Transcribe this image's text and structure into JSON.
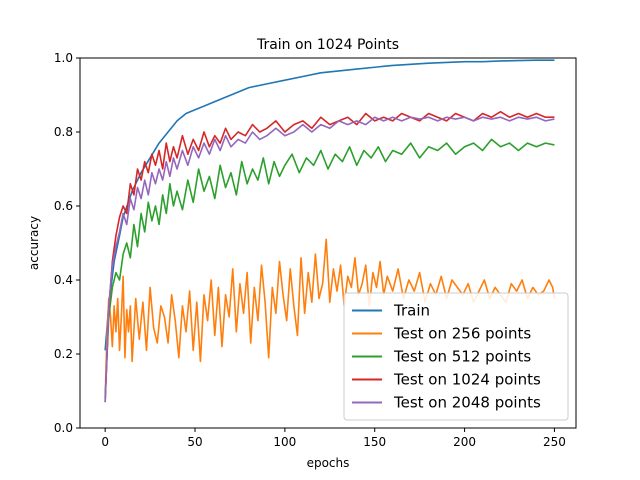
{
  "chart_data": {
    "type": "line",
    "title": "Train on 1024 Points",
    "xlabel": "epochs",
    "ylabel": "accuracy",
    "xlim": [
      -14,
      262
    ],
    "ylim": [
      0.0,
      1.0
    ],
    "xticks": [
      0,
      50,
      100,
      150,
      200,
      250
    ],
    "yticks": [
      0.0,
      0.2,
      0.4,
      0.6,
      0.8,
      1.0
    ],
    "grid": false,
    "legend_position": "lower-right",
    "series": [
      {
        "name": "Train",
        "color": "#1f77b4",
        "x": [
          0,
          2,
          5,
          8,
          10,
          15,
          20,
          25,
          30,
          35,
          40,
          45,
          50,
          55,
          60,
          70,
          80,
          90,
          100,
          110,
          120,
          130,
          140,
          150,
          160,
          170,
          180,
          190,
          200,
          210,
          220,
          230,
          240,
          250
        ],
        "y": [
          0.21,
          0.33,
          0.45,
          0.52,
          0.57,
          0.64,
          0.69,
          0.73,
          0.77,
          0.8,
          0.83,
          0.85,
          0.86,
          0.87,
          0.88,
          0.9,
          0.92,
          0.93,
          0.94,
          0.95,
          0.96,
          0.965,
          0.97,
          0.975,
          0.98,
          0.983,
          0.986,
          0.988,
          0.99,
          0.99,
          0.992,
          0.993,
          0.994,
          0.994
        ]
      },
      {
        "name": "Test on 256 points",
        "color": "#ff7f0e",
        "x": [
          0,
          1,
          2,
          3,
          4,
          5,
          6,
          7,
          8,
          9,
          10,
          11,
          12,
          13,
          14,
          15,
          17,
          19,
          21,
          23,
          25,
          27,
          29,
          31,
          33,
          35,
          37,
          39,
          41,
          43,
          45,
          47,
          49,
          51,
          53,
          55,
          57,
          59,
          61,
          63,
          65,
          67,
          69,
          71,
          73,
          75,
          77,
          79,
          81,
          83,
          85,
          87,
          89,
          91,
          93,
          95,
          97,
          99,
          101,
          103,
          105,
          107,
          109,
          111,
          113,
          115,
          117,
          119,
          121,
          123,
          125,
          127,
          129,
          131,
          133,
          135,
          137,
          139,
          141,
          143,
          145,
          147,
          149,
          151,
          153,
          155,
          157,
          160,
          163,
          166,
          169,
          172,
          175,
          178,
          181,
          184,
          187,
          190,
          193,
          196,
          199,
          202,
          205,
          208,
          211,
          214,
          217,
          220,
          223,
          226,
          229,
          232,
          235,
          238,
          241,
          244,
          247,
          249,
          250
        ],
        "y": [
          0.08,
          0.25,
          0.35,
          0.3,
          0.22,
          0.33,
          0.26,
          0.35,
          0.21,
          0.3,
          0.41,
          0.19,
          0.32,
          0.26,
          0.33,
          0.18,
          0.35,
          0.24,
          0.34,
          0.21,
          0.38,
          0.27,
          0.23,
          0.33,
          0.3,
          0.23,
          0.36,
          0.29,
          0.19,
          0.33,
          0.26,
          0.37,
          0.21,
          0.34,
          0.18,
          0.36,
          0.29,
          0.4,
          0.25,
          0.38,
          0.22,
          0.36,
          0.3,
          0.43,
          0.26,
          0.39,
          0.31,
          0.42,
          0.23,
          0.38,
          0.29,
          0.44,
          0.34,
          0.19,
          0.38,
          0.31,
          0.45,
          0.36,
          0.29,
          0.43,
          0.33,
          0.25,
          0.46,
          0.31,
          0.42,
          0.34,
          0.47,
          0.35,
          0.39,
          0.51,
          0.34,
          0.43,
          0.37,
          0.44,
          0.33,
          0.41,
          0.38,
          0.46,
          0.36,
          0.39,
          0.44,
          0.33,
          0.42,
          0.38,
          0.45,
          0.36,
          0.41,
          0.37,
          0.43,
          0.35,
          0.4,
          0.37,
          0.42,
          0.34,
          0.39,
          0.36,
          0.41,
          0.35,
          0.4,
          0.38,
          0.36,
          0.39,
          0.34,
          0.37,
          0.4,
          0.35,
          0.38,
          0.36,
          0.34,
          0.39,
          0.37,
          0.4,
          0.35,
          0.38,
          0.36,
          0.37,
          0.4,
          0.38,
          0.35
        ]
      },
      {
        "name": "Test on 512 points",
        "color": "#2ca02c",
        "x": [
          0,
          2,
          4,
          6,
          8,
          10,
          12,
          14,
          16,
          18,
          20,
          22,
          24,
          26,
          28,
          30,
          32,
          34,
          36,
          38,
          40,
          43,
          46,
          49,
          52,
          55,
          58,
          61,
          64,
          67,
          70,
          73,
          76,
          79,
          82,
          85,
          88,
          91,
          94,
          97,
          100,
          104,
          108,
          112,
          116,
          120,
          124,
          128,
          132,
          136,
          140,
          144,
          148,
          152,
          156,
          160,
          165,
          170,
          175,
          180,
          185,
          190,
          195,
          200,
          205,
          210,
          215,
          220,
          225,
          230,
          235,
          240,
          245,
          250
        ],
        "y": [
          0.08,
          0.3,
          0.38,
          0.42,
          0.4,
          0.47,
          0.5,
          0.46,
          0.55,
          0.49,
          0.58,
          0.53,
          0.61,
          0.56,
          0.6,
          0.55,
          0.63,
          0.58,
          0.66,
          0.6,
          0.64,
          0.59,
          0.67,
          0.61,
          0.7,
          0.64,
          0.68,
          0.62,
          0.71,
          0.65,
          0.69,
          0.63,
          0.72,
          0.66,
          0.7,
          0.67,
          0.73,
          0.66,
          0.72,
          0.68,
          0.71,
          0.74,
          0.69,
          0.73,
          0.71,
          0.75,
          0.7,
          0.74,
          0.72,
          0.76,
          0.71,
          0.75,
          0.73,
          0.76,
          0.72,
          0.75,
          0.74,
          0.77,
          0.73,
          0.76,
          0.75,
          0.77,
          0.74,
          0.76,
          0.77,
          0.75,
          0.78,
          0.76,
          0.77,
          0.75,
          0.77,
          0.76,
          0.77,
          0.765
        ]
      },
      {
        "name": "Test on 1024 points",
        "color": "#d62728",
        "x": [
          0,
          2,
          4,
          6,
          8,
          10,
          12,
          14,
          16,
          18,
          20,
          22,
          24,
          26,
          28,
          30,
          32,
          34,
          36,
          38,
          40,
          43,
          46,
          49,
          52,
          55,
          58,
          61,
          64,
          67,
          70,
          74,
          78,
          82,
          86,
          90,
          95,
          100,
          105,
          110,
          115,
          120,
          125,
          130,
          135,
          140,
          145,
          150,
          155,
          160,
          165,
          170,
          175,
          180,
          185,
          190,
          195,
          200,
          205,
          210,
          215,
          220,
          225,
          230,
          235,
          240,
          245,
          250
        ],
        "y": [
          0.07,
          0.32,
          0.45,
          0.52,
          0.57,
          0.6,
          0.58,
          0.66,
          0.63,
          0.7,
          0.67,
          0.72,
          0.69,
          0.74,
          0.71,
          0.75,
          0.7,
          0.77,
          0.72,
          0.76,
          0.73,
          0.79,
          0.74,
          0.78,
          0.75,
          0.8,
          0.76,
          0.79,
          0.77,
          0.81,
          0.78,
          0.8,
          0.79,
          0.82,
          0.8,
          0.81,
          0.83,
          0.8,
          0.82,
          0.83,
          0.81,
          0.84,
          0.82,
          0.83,
          0.84,
          0.82,
          0.85,
          0.83,
          0.84,
          0.83,
          0.85,
          0.84,
          0.83,
          0.85,
          0.84,
          0.83,
          0.85,
          0.84,
          0.83,
          0.85,
          0.84,
          0.855,
          0.84,
          0.85,
          0.84,
          0.85,
          0.84,
          0.84
        ]
      },
      {
        "name": "Test on 2048 points",
        "color": "#9467bd",
        "x": [
          0,
          2,
          4,
          6,
          8,
          10,
          12,
          14,
          16,
          18,
          20,
          22,
          24,
          26,
          28,
          30,
          32,
          34,
          36,
          38,
          40,
          43,
          46,
          49,
          52,
          55,
          58,
          61,
          64,
          67,
          70,
          74,
          78,
          82,
          86,
          90,
          95,
          100,
          105,
          110,
          115,
          120,
          125,
          130,
          135,
          140,
          145,
          150,
          155,
          160,
          165,
          170,
          175,
          180,
          185,
          190,
          195,
          200,
          205,
          210,
          215,
          220,
          225,
          230,
          235,
          240,
          245,
          250
        ],
        "y": [
          0.07,
          0.33,
          0.44,
          0.49,
          0.53,
          0.58,
          0.55,
          0.62,
          0.59,
          0.65,
          0.62,
          0.67,
          0.63,
          0.69,
          0.66,
          0.7,
          0.67,
          0.72,
          0.68,
          0.73,
          0.7,
          0.75,
          0.71,
          0.76,
          0.73,
          0.77,
          0.74,
          0.78,
          0.75,
          0.79,
          0.76,
          0.78,
          0.77,
          0.8,
          0.78,
          0.79,
          0.81,
          0.79,
          0.8,
          0.82,
          0.8,
          0.82,
          0.81,
          0.83,
          0.82,
          0.83,
          0.82,
          0.84,
          0.83,
          0.84,
          0.83,
          0.84,
          0.835,
          0.84,
          0.83,
          0.84,
          0.835,
          0.84,
          0.83,
          0.84,
          0.835,
          0.84,
          0.83,
          0.84,
          0.835,
          0.84,
          0.83,
          0.835
        ]
      }
    ]
  }
}
